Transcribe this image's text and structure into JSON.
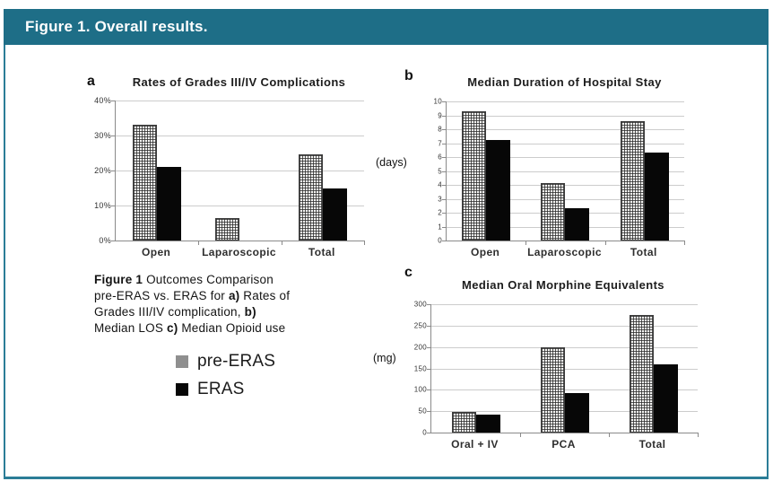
{
  "header": {
    "title": "Figure 1. Overall results."
  },
  "colors": {
    "accent_teal": "#1e6e87",
    "frame_teal": "#2b7d97",
    "pre_eras_gray": "#8f8f8f",
    "eras_black": "#070707"
  },
  "caption": {
    "lines": [
      [
        {
          "t": "Figure 1",
          "b": true
        },
        {
          "t": "  Outcomes Comparison",
          "b": false
        }
      ],
      [
        {
          "t": "pre-ERAS vs. ERAS for ",
          "b": false
        },
        {
          "t": "a)",
          "b": true
        },
        {
          "t": " Rates of",
          "b": false
        }
      ],
      [
        {
          "t": "Grades III/IV complication, ",
          "b": false
        },
        {
          "t": "b)",
          "b": true
        }
      ],
      [
        {
          "t": "Median LOS ",
          "b": false
        },
        {
          "t": "c)",
          "b": true
        },
        {
          "t": " Median Opioid use",
          "b": false
        }
      ]
    ]
  },
  "legend": {
    "items": [
      {
        "label": "pre-ERAS",
        "color": "#8f8f8f"
      },
      {
        "label": "ERAS",
        "color": "#070707"
      }
    ]
  },
  "chart_data": [
    {
      "id": "a",
      "type": "bar",
      "panel_label": "a",
      "title": "Rates of Grades III/IV Complications",
      "xlabel": "",
      "ylabel": "",
      "ylim": [
        0,
        40
      ],
      "yticks": [
        "40%",
        "30%",
        "20%",
        "10%",
        "0%"
      ],
      "grid": true,
      "legend_position": "outside-left",
      "categories": [
        "Open",
        "Laparoscopic",
        "Total"
      ],
      "series": [
        {
          "name": "pre-ERAS",
          "values": [
            33,
            6.5,
            24.5
          ]
        },
        {
          "name": "ERAS",
          "values": [
            21,
            0,
            15
          ]
        }
      ]
    },
    {
      "id": "b",
      "type": "bar",
      "panel_label": "b",
      "title": "Median Duration of Hospital Stay",
      "xlabel": "",
      "ylabel": "(days)",
      "ylim": [
        0,
        10
      ],
      "yticks": [
        "10",
        "9",
        "8",
        "7",
        "6",
        "5",
        "4",
        "3",
        "2",
        "1",
        "0"
      ],
      "grid": true,
      "legend_position": "outside-left",
      "categories": [
        "Open",
        "Laparoscopic",
        "Total"
      ],
      "series": [
        {
          "name": "pre-ERAS",
          "values": [
            9.3,
            4.1,
            8.6
          ]
        },
        {
          "name": "ERAS",
          "values": [
            7.2,
            2.3,
            6.3
          ]
        }
      ]
    },
    {
      "id": "c",
      "type": "bar",
      "panel_label": "c",
      "title": "Median Oral Morphine Equivalents",
      "xlabel": "",
      "ylabel": "(mg)",
      "ylim": [
        0,
        300
      ],
      "yticks": [
        "300",
        "250",
        "200",
        "150",
        "100",
        "50",
        "0"
      ],
      "grid": true,
      "legend_position": "outside-left",
      "categories": [
        "Oral + IV",
        "PCA",
        "Total"
      ],
      "series": [
        {
          "name": "pre-ERAS",
          "values": [
            48,
            200,
            275
          ]
        },
        {
          "name": "ERAS",
          "values": [
            42,
            92,
            160
          ]
        }
      ]
    }
  ]
}
